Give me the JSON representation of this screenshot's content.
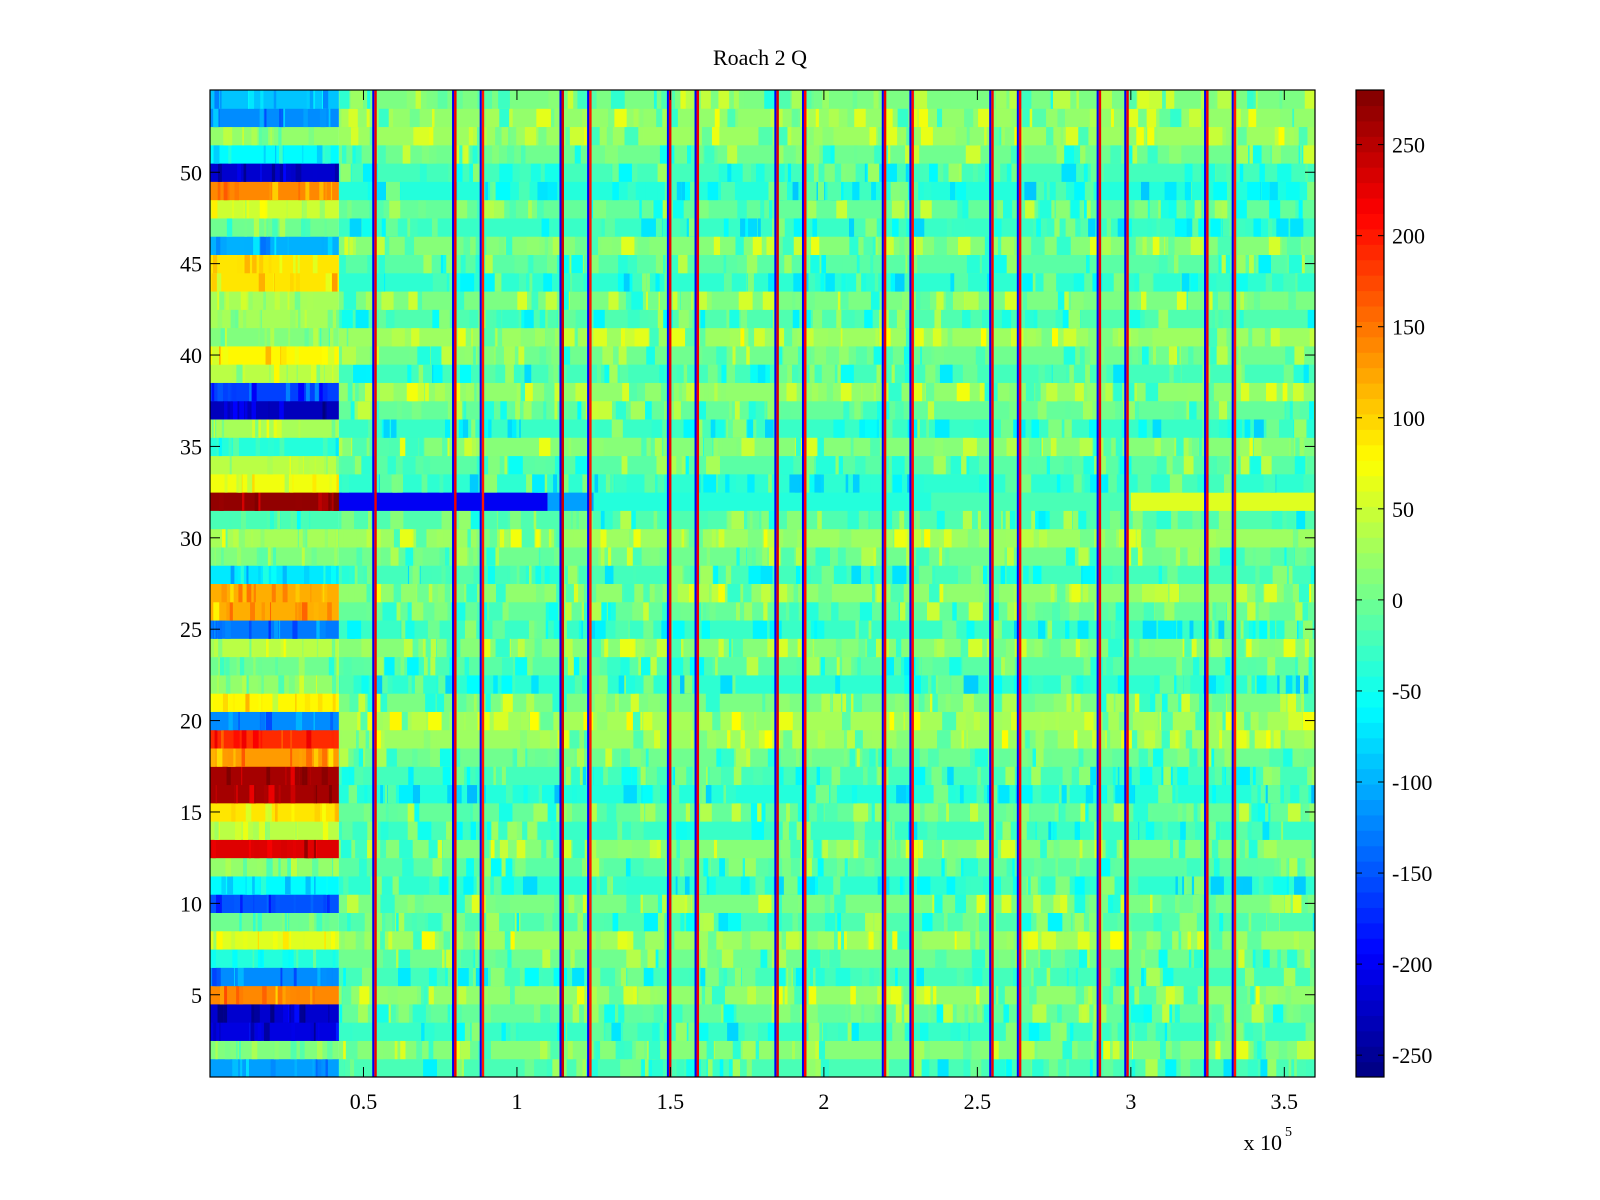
{
  "chart_data": {
    "type": "heatmap",
    "title": "Roach 2 Q",
    "xlabel": "",
    "ylabel": "",
    "x_multiplier_label": "x 10",
    "x_multiplier_exponent": "5",
    "xlim": [
      0,
      360000
    ],
    "ylim": [
      0.5,
      54.5
    ],
    "x_ticks": [
      {
        "value": 50000,
        "label": "0.5"
      },
      {
        "value": 100000,
        "label": "1"
      },
      {
        "value": 150000,
        "label": "1.5"
      },
      {
        "value": 200000,
        "label": "2"
      },
      {
        "value": 250000,
        "label": "2.5"
      },
      {
        "value": 300000,
        "label": "3"
      },
      {
        "value": 350000,
        "label": "3.5"
      }
    ],
    "y_ticks": [
      {
        "value": 5,
        "label": "5"
      },
      {
        "value": 10,
        "label": "10"
      },
      {
        "value": 15,
        "label": "15"
      },
      {
        "value": 20,
        "label": "20"
      },
      {
        "value": 25,
        "label": "25"
      },
      {
        "value": 30,
        "label": "30"
      },
      {
        "value": 35,
        "label": "35"
      },
      {
        "value": 40,
        "label": "40"
      },
      {
        "value": 45,
        "label": "45"
      },
      {
        "value": 50,
        "label": "50"
      }
    ],
    "colorbar": {
      "colormap": "jet",
      "range": [
        -262,
        280
      ],
      "ticks": [
        {
          "value": 250,
          "label": "250"
        },
        {
          "value": 200,
          "label": "200"
        },
        {
          "value": 150,
          "label": "150"
        },
        {
          "value": 100,
          "label": "100"
        },
        {
          "value": 50,
          "label": "50"
        },
        {
          "value": 0,
          "label": "0"
        },
        {
          "value": -50,
          "label": "-50"
        },
        {
          "value": -100,
          "label": "-100"
        },
        {
          "value": -150,
          "label": "-150"
        },
        {
          "value": -200,
          "label": "-200"
        },
        {
          "value": -250,
          "label": "-250"
        }
      ]
    },
    "initial_segment_end": 42000,
    "row_values_initial_segment": [
      {
        "row": 1,
        "value": -110
      },
      {
        "row": 2,
        "value": 10
      },
      {
        "row": 3,
        "value": -210
      },
      {
        "row": 4,
        "value": -220
      },
      {
        "row": 5,
        "value": 140
      },
      {
        "row": 6,
        "value": -120
      },
      {
        "row": 7,
        "value": -40
      },
      {
        "row": 8,
        "value": 60
      },
      {
        "row": 9,
        "value": 0
      },
      {
        "row": 10,
        "value": -150
      },
      {
        "row": 11,
        "value": -60
      },
      {
        "row": 12,
        "value": 20
      },
      {
        "row": 13,
        "value": 230
      },
      {
        "row": 14,
        "value": 40
      },
      {
        "row": 15,
        "value": 90
      },
      {
        "row": 16,
        "value": 260
      },
      {
        "row": 17,
        "value": 260
      },
      {
        "row": 18,
        "value": 130
      },
      {
        "row": 19,
        "value": 190
      },
      {
        "row": 20,
        "value": -120
      },
      {
        "row": 21,
        "value": 80
      },
      {
        "row": 22,
        "value": 20
      },
      {
        "row": 23,
        "value": 0
      },
      {
        "row": 24,
        "value": 40
      },
      {
        "row": 25,
        "value": -130
      },
      {
        "row": 26,
        "value": 120
      },
      {
        "row": 27,
        "value": 120
      },
      {
        "row": 28,
        "value": -70
      },
      {
        "row": 29,
        "value": 10
      },
      {
        "row": 30,
        "value": 30
      },
      {
        "row": 31,
        "value": -20
      },
      {
        "row": 32,
        "value": 270
      },
      {
        "row": 33,
        "value": 70
      },
      {
        "row": 34,
        "value": 40
      },
      {
        "row": 35,
        "value": -40
      },
      {
        "row": 36,
        "value": 30
      },
      {
        "row": 37,
        "value": -230
      },
      {
        "row": 38,
        "value": -160
      },
      {
        "row": 39,
        "value": 40
      },
      {
        "row": 40,
        "value": 80
      },
      {
        "row": 41,
        "value": 10
      },
      {
        "row": 42,
        "value": 30
      },
      {
        "row": 43,
        "value": 30
      },
      {
        "row": 44,
        "value": 90
      },
      {
        "row": 45,
        "value": 90
      },
      {
        "row": 46,
        "value": -100
      },
      {
        "row": 47,
        "value": 0
      },
      {
        "row": 48,
        "value": 50
      },
      {
        "row": 49,
        "value": 140
      },
      {
        "row": 50,
        "value": -220
      },
      {
        "row": 51,
        "value": -60
      },
      {
        "row": 52,
        "value": 20
      },
      {
        "row": 53,
        "value": -120
      },
      {
        "row": 54,
        "value": -90
      }
    ],
    "row_values_main": [
      {
        "row": 1,
        "value": -20
      },
      {
        "row": 16,
        "value": -40
      },
      {
        "row": 20,
        "value": 30
      },
      {
        "row": 32,
        "value": 40
      },
      {
        "row": 49,
        "value": -40
      },
      {
        "row": 53,
        "value": 20
      }
    ],
    "row_32_segments": [
      {
        "x_start": 42000,
        "x_end": 110000,
        "value": -200
      },
      {
        "x_start": 110000,
        "x_end": 125000,
        "value": -110
      },
      {
        "x_start": 125000,
        "x_end": 235000,
        "value": -40
      },
      {
        "x_start": 235000,
        "x_end": 300000,
        "value": -20
      },
      {
        "x_start": 300000,
        "x_end": 360000,
        "value": 60
      }
    ],
    "vertical_stripes": [
      {
        "x": 54000,
        "value": 220
      },
      {
        "x": 80000,
        "value": 220
      },
      {
        "x": 89000,
        "value": 200
      },
      {
        "x": 115000,
        "value": 240
      },
      {
        "x": 124000,
        "value": 200
      },
      {
        "x": 150000,
        "value": 220
      },
      {
        "x": 159000,
        "value": 220
      },
      {
        "x": 185000,
        "value": 230
      },
      {
        "x": 194000,
        "value": 210
      },
      {
        "x": 220000,
        "value": 220
      },
      {
        "x": 229000,
        "value": 210
      },
      {
        "x": 255000,
        "value": 220
      },
      {
        "x": 264000,
        "value": 210
      },
      {
        "x": 290000,
        "value": 220
      },
      {
        "x": 299000,
        "value": 220
      },
      {
        "x": 325000,
        "value": 220
      },
      {
        "x": 334000,
        "value": 200
      }
    ]
  }
}
